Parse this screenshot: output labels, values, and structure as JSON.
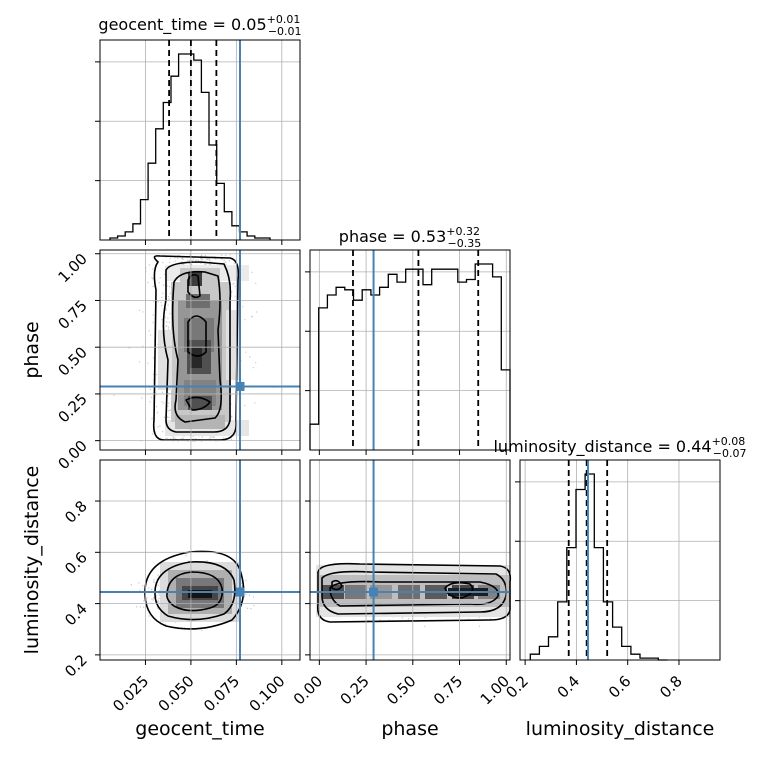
{
  "chart_data": {
    "type": "corner",
    "truth_color": "#4682b4",
    "parameters": [
      {
        "name": "geocent_time",
        "axis_label": "geocent_time",
        "title_prefix": "geocent_time = 0.05",
        "title_plus": "+0.01",
        "title_minus": "−0.01",
        "median": 0.05,
        "q_low": 0.038,
        "q_high": 0.064,
        "truth": 0.077,
        "range": [
          0.0,
          0.11
        ],
        "ticks": [
          0.025,
          0.05,
          0.075,
          0.1
        ],
        "tick_labels": [
          "0.025",
          "0.050",
          "0.075",
          "0.100"
        ],
        "hist_edges": [
          0.0055,
          0.0935
        ],
        "hist": [
          1,
          2,
          4,
          8,
          20,
          38,
          55,
          68,
          81,
          92,
          92,
          89,
          73,
          47,
          28,
          14,
          7,
          4,
          2,
          1,
          1
        ]
      },
      {
        "name": "phase",
        "axis_label": "phase",
        "title_prefix": "phase = 0.53",
        "title_plus": "+0.32",
        "title_minus": "−0.35",
        "median": 0.53,
        "q_low": 0.18,
        "q_high": 0.85,
        "truth": 0.29,
        "range": [
          -0.05,
          1.02
        ],
        "ticks": [
          0.0,
          0.25,
          0.5,
          0.75,
          1.0
        ],
        "tick_labels": [
          "0.00",
          "0.25",
          "0.50",
          "0.75",
          "1.00"
        ],
        "hist_edges": [
          -0.05,
          1.02
        ],
        "hist": [
          10,
          55,
          60,
          63,
          62,
          58,
          62,
          60,
          63,
          68,
          65,
          70,
          70,
          64,
          70,
          70,
          70,
          65,
          66,
          72,
          72,
          67,
          31
        ]
      },
      {
        "name": "luminosity_distance",
        "axis_label": "luminosity_distance",
        "title_prefix": "luminosity_distance = 0.44",
        "title_plus": "+0.08",
        "title_minus": "−0.07",
        "median": 0.44,
        "q_low": 0.37,
        "q_high": 0.52,
        "truth": 0.445,
        "range": [
          0.18,
          0.96
        ],
        "ticks": [
          0.2,
          0.4,
          0.6,
          0.8
        ],
        "tick_labels": [
          "0.2",
          "0.4",
          "0.6",
          "0.8"
        ],
        "hist_edges": [
          0.22,
          0.755
        ],
        "hist": [
          3,
          7,
          12,
          30,
          58,
          88,
          96,
          58,
          30,
          17,
          7,
          3,
          1,
          1,
          0
        ]
      }
    ],
    "scatter": [
      {
        "x": "geocent_time",
        "y": "phase",
        "x_center": 0.052,
        "x_spread": 0.011,
        "y_min": 0.0,
        "y_max": 1.0
      },
      {
        "x": "geocent_time",
        "y": "luminosity_distance",
        "x_center": 0.052,
        "x_spread": 0.011,
        "y_center": 0.44,
        "y_spread": 0.045
      },
      {
        "x": "phase",
        "y": "luminosity_distance",
        "x_min": 0.0,
        "x_max": 1.0,
        "y_center": 0.44,
        "y_spread": 0.04
      }
    ],
    "grid": true
  }
}
